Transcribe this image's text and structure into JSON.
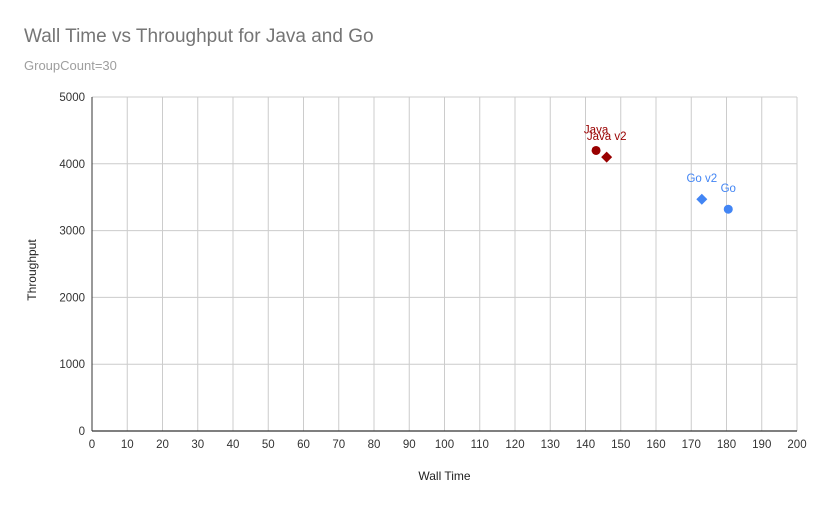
{
  "colors": {
    "java": "#990000",
    "go": "#4285f4",
    "grid": "#cccccc",
    "axis": "#333333"
  },
  "chart_data": {
    "type": "scatter",
    "title": "Wall Time vs Throughput for Java and Go",
    "subtitle": "GroupCount=30",
    "xlabel": "Wall Time",
    "ylabel": "Throughput",
    "xlim": [
      0,
      200
    ],
    "ylim": [
      0,
      5000
    ],
    "xticks": [
      "0",
      "10",
      "20",
      "30",
      "40",
      "50",
      "60",
      "70",
      "80",
      "90",
      "100",
      "110",
      "120",
      "130",
      "140",
      "150",
      "160",
      "170",
      "180",
      "190",
      "200"
    ],
    "yticks": [
      "0",
      "1000",
      "2000",
      "3000",
      "4000",
      "5000"
    ],
    "grid": true,
    "points": [
      {
        "label": "Java",
        "x": 143,
        "y": 4200,
        "color": "#990000",
        "marker": "circle"
      },
      {
        "label": "Java v2",
        "x": 146,
        "y": 4100,
        "color": "#990000",
        "marker": "diamond"
      },
      {
        "label": "Go v2",
        "x": 173,
        "y": 3470,
        "color": "#4285f4",
        "marker": "diamond"
      },
      {
        "label": "Go",
        "x": 180.5,
        "y": 3320,
        "color": "#4285f4",
        "marker": "circle"
      }
    ]
  }
}
